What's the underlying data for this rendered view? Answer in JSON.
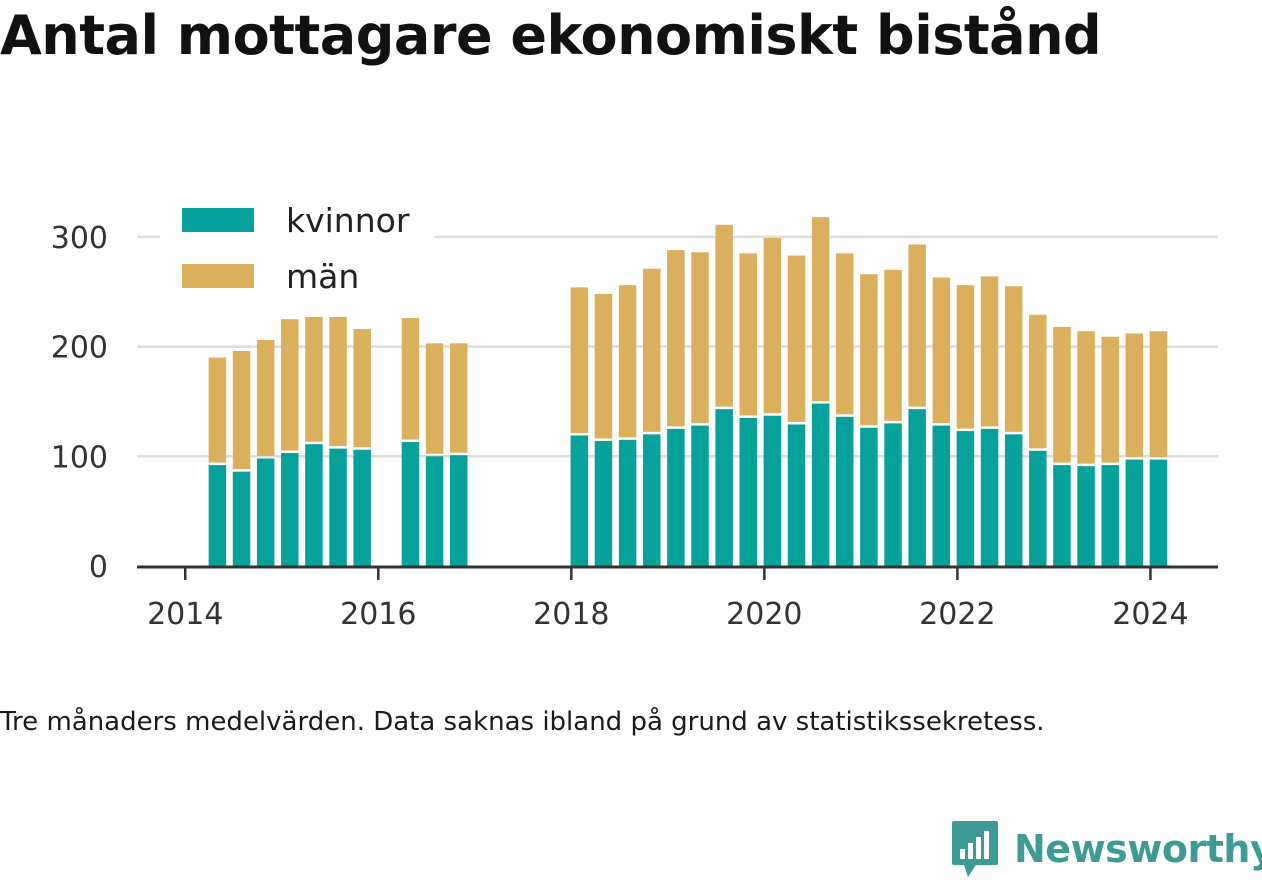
{
  "title": "Antal mottagare ekonomiskt bistånd",
  "footnote": "Tre månaders medelvärden. Data saknas ibland på grund av statistikssekretess.",
  "brand": {
    "name": "Newsworthy",
    "icon": "newsworthy-logo-icon",
    "color": "#3e9a95"
  },
  "chart_data": {
    "type": "bar",
    "stacked": true,
    "x": [
      2014.333,
      2014.583,
      2014.833,
      2015.083,
      2015.333,
      2015.583,
      2015.833,
      2016.333,
      2016.583,
      2016.833,
      2018.083,
      2018.333,
      2018.583,
      2018.833,
      2019.083,
      2019.333,
      2019.583,
      2019.833,
      2020.083,
      2020.333,
      2020.583,
      2020.833,
      2021.083,
      2021.333,
      2021.583,
      2021.833,
      2022.083,
      2022.333,
      2022.583,
      2022.833,
      2023.083,
      2023.333,
      2023.583,
      2023.833,
      2024.083
    ],
    "series": [
      {
        "name": "kvinnor",
        "color": "#06a19a",
        "values": [
          92,
          86,
          98,
          103,
          111,
          107,
          106,
          113,
          100,
          101,
          119,
          114,
          115,
          120,
          125,
          128,
          143,
          135,
          137,
          129,
          148,
          136,
          126,
          130,
          143,
          128,
          123,
          125,
          120,
          105,
          92,
          91,
          92,
          97,
          97
        ]
      },
      {
        "name": "män",
        "color": "#dbb05c",
        "values": [
          98,
          110,
          108,
          122,
          116,
          120,
          110,
          113,
          103,
          102,
          135,
          134,
          141,
          151,
          163,
          158,
          168,
          150,
          162,
          154,
          170,
          149,
          140,
          140,
          150,
          135,
          133,
          139,
          135,
          124,
          126,
          123,
          117,
          115,
          117
        ]
      }
    ],
    "xlim": [
      2013.5,
      2024.7
    ],
    "ylim": [
      0,
      330
    ],
    "x_ticks": [
      2014,
      2016,
      2018,
      2020,
      2022,
      2024
    ],
    "x_tick_labels": [
      "2014",
      "2016",
      "2018",
      "2020",
      "2022",
      "2024"
    ],
    "y_ticks": [
      0,
      100,
      200,
      300
    ],
    "y_tick_labels": [
      "0",
      "100",
      "200",
      "300"
    ],
    "grid": "horizontal",
    "legend": "top-left",
    "title": "Antal mottagare ekonomiskt bistånd",
    "xlabel": "",
    "ylabel": ""
  }
}
